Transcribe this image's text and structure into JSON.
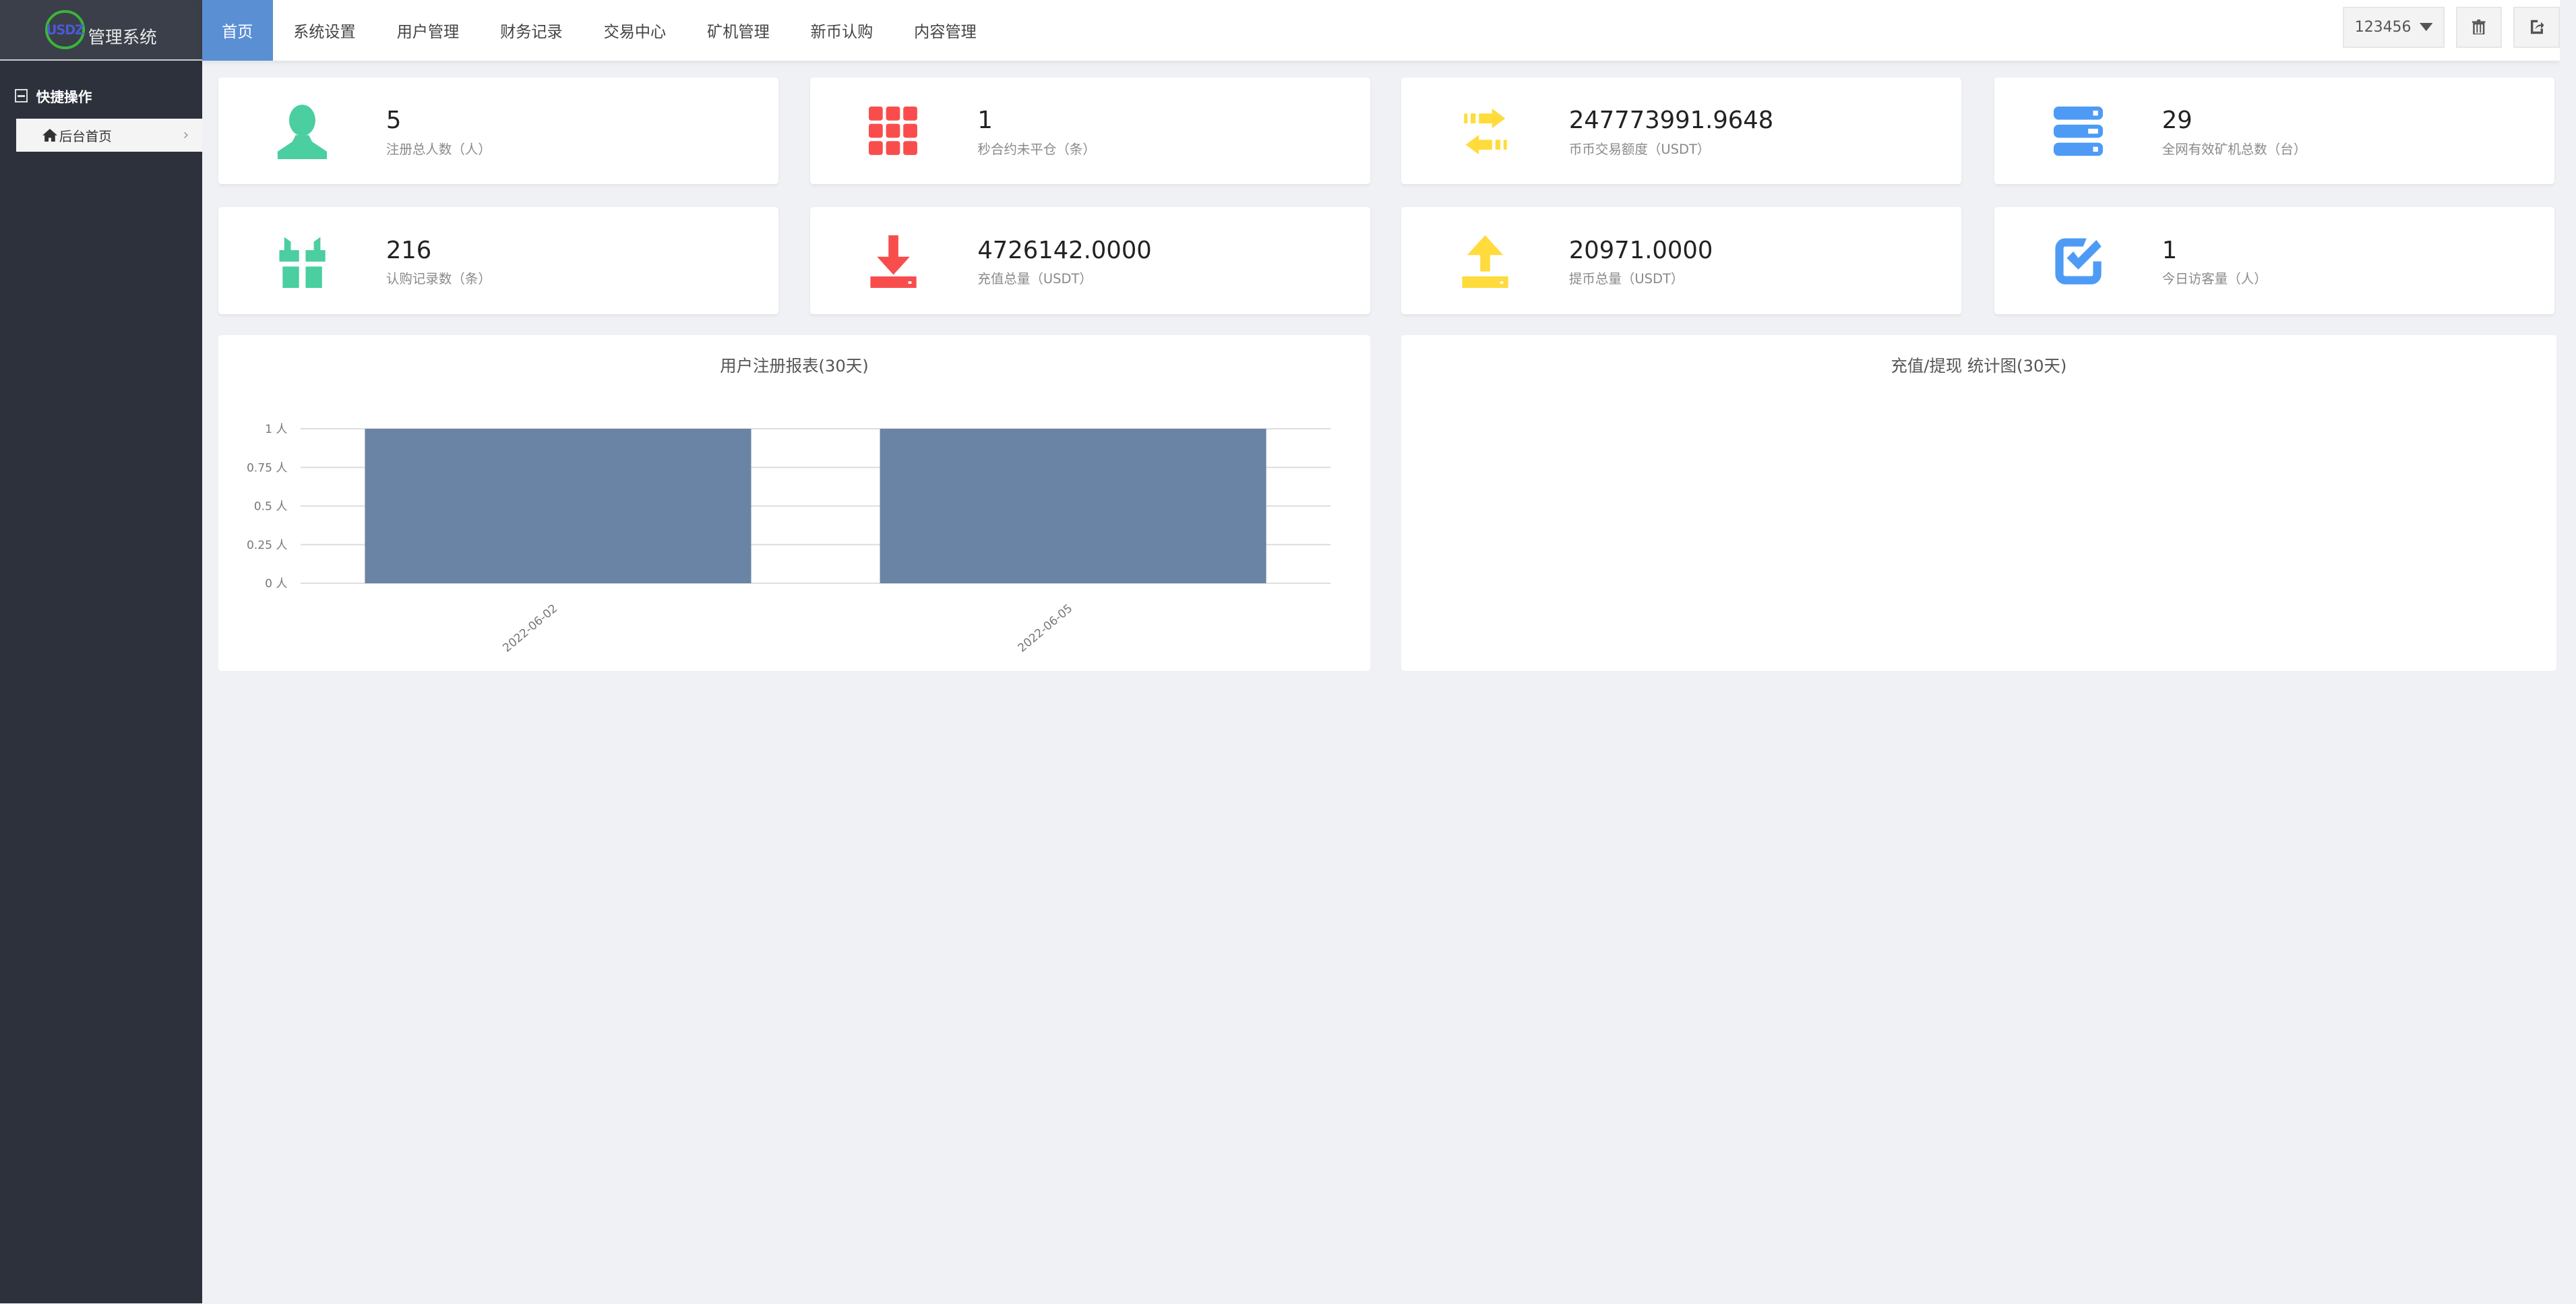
{
  "logo": {
    "badge": "USDZ",
    "title": "管理系统"
  },
  "sidebar": {
    "group": "快捷操作",
    "items": [
      {
        "label": "后台首页"
      }
    ]
  },
  "nav": {
    "tabs": [
      {
        "label": "首页",
        "active": true
      },
      {
        "label": "系统设置"
      },
      {
        "label": "用户管理"
      },
      {
        "label": "财务记录"
      },
      {
        "label": "交易中心"
      },
      {
        "label": "矿机管理"
      },
      {
        "label": "新币认购"
      },
      {
        "label": "内容管理"
      }
    ]
  },
  "user": {
    "name": "123456"
  },
  "stats": [
    {
      "value": "5",
      "label": "注册总人数（人）",
      "icon": "user-icon",
      "color": "#4bcea0"
    },
    {
      "value": "1",
      "label": "秒合约未平仓（条）",
      "icon": "grid-icon",
      "color": "#f94d4d"
    },
    {
      "value": "247773991.9648",
      "label": "币币交易额度（USDT）",
      "icon": "exchange-icon",
      "color": "#ffdb3b"
    },
    {
      "value": "29",
      "label": "全网有效矿机总数（台）",
      "icon": "server-icon",
      "color": "#4e9bf5"
    },
    {
      "value": "216",
      "label": "认购记录数（条）",
      "icon": "gift-icon",
      "color": "#4bcea0"
    },
    {
      "value": "4726142.0000",
      "label": "充值总量（USDT）",
      "icon": "download-icon",
      "color": "#f94d4d"
    },
    {
      "value": "20971.0000",
      "label": "提币总量（USDT）",
      "icon": "upload-icon",
      "color": "#ffdb3b"
    },
    {
      "value": "1",
      "label": "今日访客量（人）",
      "icon": "check-square-icon",
      "color": "#4e9bf5"
    }
  ],
  "chart_data": [
    {
      "type": "bar",
      "title": "用户注册报表(30天)",
      "categories": [
        "2022-06-02",
        "2022-06-05"
      ],
      "values": [
        1,
        1
      ],
      "ylim": [
        0,
        1
      ],
      "yticks": [
        "0 人",
        "0.25 人",
        "0.5 人",
        "0.75 人",
        "1 人"
      ],
      "ytick_values": [
        0,
        0.25,
        0.5,
        0.75,
        1
      ],
      "grid": true,
      "bar_color": "#6984a4"
    },
    {
      "type": "line",
      "title": "充值/提现 统计图(30天)",
      "series": []
    }
  ]
}
